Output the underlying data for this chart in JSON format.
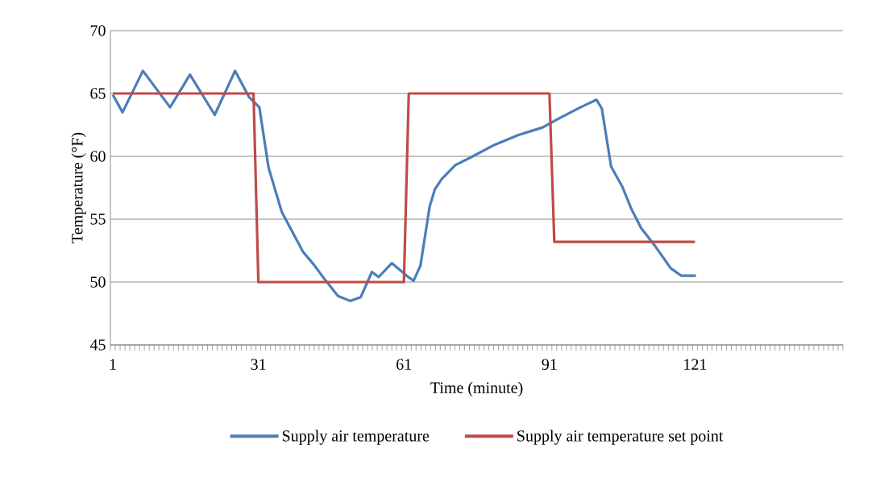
{
  "chart_data": {
    "type": "line",
    "xlabel": "Time (minute)",
    "ylabel": "Temperature (°F)",
    "xlim": [
      0.5,
      151.5
    ],
    "xticks": [
      1,
      31,
      61,
      91,
      121
    ],
    "ylim": [
      45,
      70
    ],
    "yticks": [
      45,
      50,
      55,
      60,
      65,
      70
    ],
    "grid": "y",
    "legend": "bottom",
    "marker": "none",
    "line_style": "solid",
    "series": [
      {
        "name": "Supply air temperature",
        "color": "#4a7ebb",
        "x": [
          1,
          3,
          7.2,
          12.8,
          16.9,
          22,
          26.2,
          29.1,
          31.2,
          33.1,
          35.8,
          40.2,
          42.4,
          44.7,
          47.4,
          49.9,
          52.1,
          54.4,
          55.8,
          58.5,
          61.9,
          63,
          64.4,
          66.3,
          67.4,
          68.8,
          71.6,
          75.2,
          79.6,
          84.6,
          89.6,
          92.9,
          97.4,
          100.7,
          101.8,
          103.7,
          106,
          107.9,
          109.9,
          112.9,
          116,
          118.2,
          121.2
        ],
        "values": [
          64.9,
          63.5,
          66.8,
          63.9,
          66.5,
          63.3,
          66.8,
          64.7,
          63.9,
          59.1,
          55.6,
          52.4,
          51.4,
          50.2,
          48.9,
          48.5,
          48.8,
          50.8,
          50.4,
          51.5,
          50.4,
          50.1,
          51.3,
          56.0,
          57.4,
          58.2,
          59.3,
          60.0,
          60.9,
          61.7,
          62.3,
          63.0,
          63.9,
          64.5,
          63.8,
          59.2,
          57.6,
          55.8,
          54.3,
          52.8,
          51.1,
          50.5,
          50.5
        ]
      },
      {
        "name": "Supply air temperature set point",
        "color": "#be4b48",
        "x": [
          1,
          30,
          31,
          61,
          62,
          91,
          92,
          121
        ],
        "values": [
          65,
          65,
          50,
          50,
          65,
          65,
          53.2,
          53.2
        ]
      }
    ]
  }
}
